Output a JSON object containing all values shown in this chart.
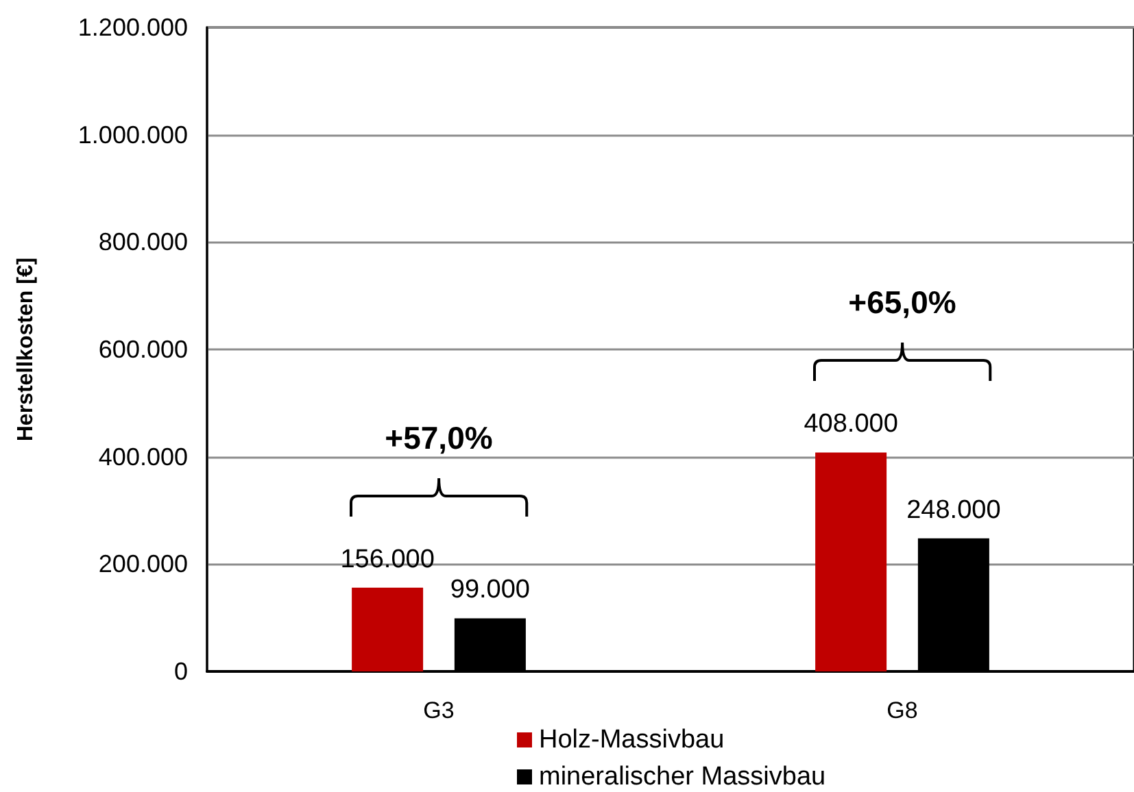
{
  "chart_data": {
    "type": "bar",
    "ylabel": "Herstellkosten [€]",
    "categories": [
      "G3",
      "G8"
    ],
    "series": [
      {
        "name": "Holz-Massivbau",
        "color": "#c00000",
        "values": [
          156000,
          408000
        ],
        "value_labels": [
          "156.000",
          "408.000"
        ]
      },
      {
        "name": "mineralischer Massivbau",
        "color": "#000000",
        "values": [
          99000,
          248000
        ],
        "value_labels": [
          "99.000",
          "248.000"
        ]
      }
    ],
    "ylim": [
      0,
      1200000
    ],
    "yticks": [
      0,
      {
        "value": 200000,
        "label": "200.000"
      },
      {
        "value": 400000,
        "label": "400.000"
      },
      {
        "value": 600000,
        "label": "600.000"
      },
      {
        "value": 800000,
        "label": "800.000"
      },
      {
        "value": 1000000,
        "label": "1.000.000"
      },
      {
        "value": 1200000,
        "label": "1.200.000"
      }
    ],
    "grid": "y",
    "legend": "bottom",
    "annotations": [
      "+57,0%",
      "+65,0%"
    ]
  }
}
